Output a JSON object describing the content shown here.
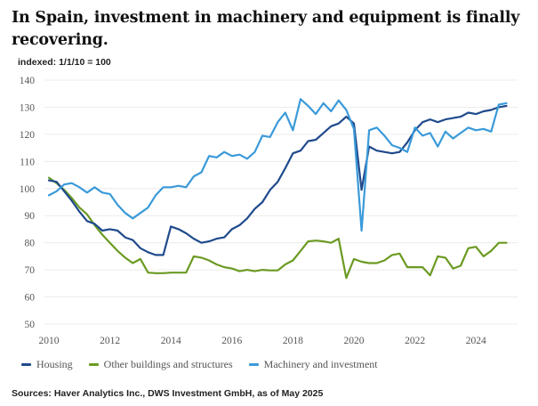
{
  "title": "In Spain, investment in machinery and equipment is finally recovering.",
  "subtitle": "indexed: 1/1/10 = 100",
  "source": "Sources: Haver Analytics Inc., DWS Investment GmbH, as of May 2025",
  "chart_data": {
    "type": "line",
    "title": "In Spain, investment in machinery and equipment is finally recovering.",
    "subtitle": "indexed: 1/1/10 = 100",
    "xlabel": "",
    "ylabel": "",
    "xlim": [
      2010,
      2025.25
    ],
    "ylim": [
      50,
      140
    ],
    "yticks": [
      50,
      60,
      70,
      80,
      90,
      100,
      110,
      120,
      130,
      140
    ],
    "xticks": [
      2010,
      2012,
      2014,
      2016,
      2018,
      2020,
      2022,
      2024
    ],
    "grid": true,
    "legend_position": "bottom",
    "x_start": 2010,
    "x_step": 0.25,
    "series": [
      {
        "name": "Housing",
        "color": "#1f4a8c",
        "values": [
          103,
          102.5,
          99,
          95.5,
          91.5,
          88,
          87,
          84.5,
          85,
          84.5,
          82,
          81,
          78,
          76.5,
          75.5,
          75.5,
          86,
          85,
          83.5,
          81.5,
          80,
          80.5,
          81.5,
          82,
          85,
          86.5,
          89,
          92.5,
          95,
          99.5,
          102.5,
          107.5,
          113,
          114,
          117.5,
          118,
          120.5,
          123,
          124,
          126.5,
          124,
          99.5,
          115.5,
          114,
          113.5,
          113,
          113.5,
          117,
          121.5,
          124.5,
          125.5,
          124.5,
          125.5,
          126,
          126.5,
          128,
          127.5,
          128.5,
          129,
          130,
          130.5
        ]
      },
      {
        "name": "Other buildings and structures",
        "color": "#6b9a22",
        "values": [
          104,
          102,
          99.5,
          96.5,
          93,
          90.5,
          86.5,
          83,
          80,
          77,
          74.5,
          72.5,
          74,
          69,
          68.8,
          68.8,
          69,
          69,
          69,
          75,
          74.5,
          73.5,
          72,
          71,
          70.5,
          69.5,
          70,
          69.5,
          70,
          69.8,
          69.8,
          72,
          73.5,
          77,
          80.5,
          80.8,
          80.5,
          80,
          81.5,
          67,
          74,
          73,
          72.5,
          72.5,
          73.5,
          75.5,
          76,
          71,
          71,
          71,
          68,
          75,
          74.5,
          70.5,
          71.5,
          78,
          78.5,
          75,
          77,
          80,
          80
        ]
      },
      {
        "name": "Machinery and investment",
        "color": "#3a9ad9",
        "values": [
          97.5,
          99,
          101.5,
          102,
          100.5,
          98.5,
          100.5,
          98.5,
          98,
          94,
          91,
          89,
          91,
          93,
          97.5,
          100.5,
          100.5,
          101,
          100.5,
          104.5,
          106,
          112,
          111.5,
          113.5,
          112,
          112.5,
          111,
          113.5,
          119.5,
          119,
          124.5,
          128,
          121.5,
          133,
          130.5,
          127.5,
          131.5,
          128.5,
          132.5,
          129,
          122,
          84.5,
          121.5,
          122.5,
          119.5,
          116,
          115,
          113.5,
          122.5,
          119.5,
          120.5,
          115.5,
          121,
          118.5,
          120.5,
          122.5,
          121.5,
          122,
          121,
          131,
          131.5
        ]
      }
    ]
  }
}
